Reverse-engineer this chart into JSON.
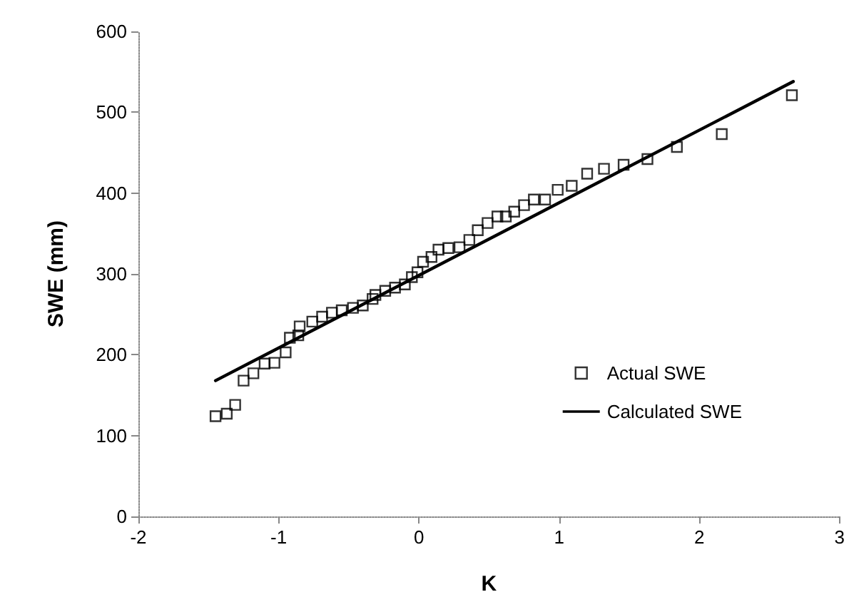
{
  "chart_data": {
    "type": "scatter",
    "xlabel": "K",
    "ylabel": "SWE (mm)",
    "xlim": [
      -2,
      3
    ],
    "xticks": [
      -2,
      -1,
      0,
      1,
      2,
      3
    ],
    "ylim": [
      0,
      600
    ],
    "yticks": [
      0,
      100,
      200,
      300,
      400,
      500,
      600
    ],
    "grid": false,
    "legend": "bottom right",
    "series": [
      {
        "name": "Actual SWE",
        "marker": "square",
        "color": "#000000",
        "x": [
          -1.45,
          -1.37,
          -1.31,
          -1.25,
          -1.18,
          -1.1,
          -1.03,
          -0.95,
          -0.92,
          -0.86,
          -0.85,
          -0.76,
          -0.69,
          -0.62,
          -0.55,
          -0.47,
          -0.4,
          -0.33,
          -0.31,
          -0.24,
          -0.17,
          -0.1,
          -0.05,
          -0.01,
          0.03,
          0.09,
          0.14,
          0.21,
          0.29,
          0.36,
          0.42,
          0.49,
          0.56,
          0.62,
          0.68,
          0.75,
          0.82,
          0.9,
          0.99,
          1.09,
          1.2,
          1.32,
          1.46,
          1.63,
          1.84,
          2.16,
          2.66
        ],
        "values": [
          124,
          127,
          138,
          168,
          177,
          189,
          190,
          203,
          221,
          224,
          235,
          241,
          247,
          252,
          255,
          258,
          261,
          269,
          274,
          279,
          283,
          287,
          296,
          302,
          315,
          321,
          330,
          332,
          333,
          342,
          354,
          363,
          371,
          371,
          377,
          385,
          392,
          392,
          404,
          409,
          424,
          430,
          435,
          442,
          457,
          473,
          521
        ]
      },
      {
        "name": "Calculated SWE",
        "type": "line",
        "marker": "none",
        "line_style": "solid",
        "color": "#000000",
        "x": [
          -1.45,
          2.67
        ],
        "values": [
          168,
          538
        ]
      }
    ]
  }
}
